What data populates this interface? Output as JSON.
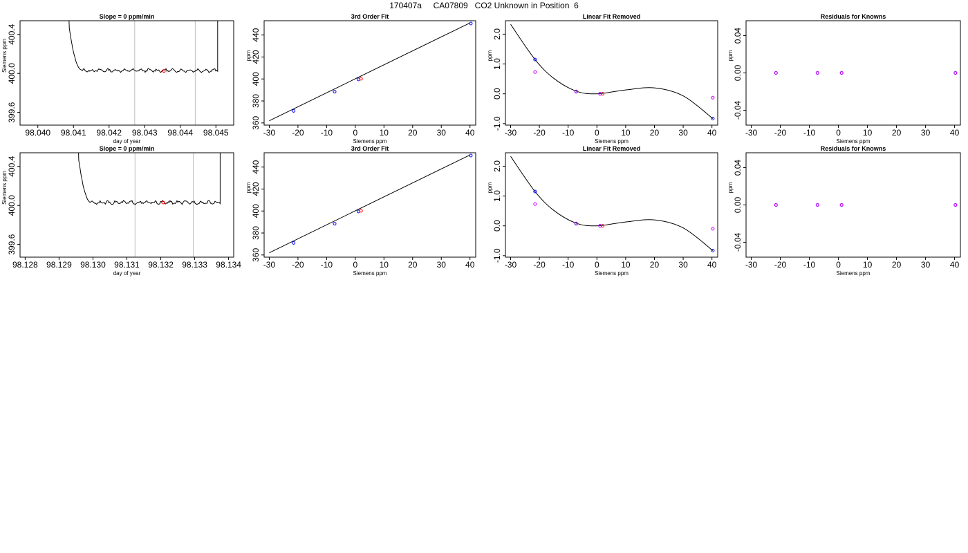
{
  "main_title": "170407a     CA07809   CO2 Unknown in Position  6",
  "chart_data": [
    {
      "id": "r1-trace",
      "type": "line",
      "title": "Slope =  0  ppm/min",
      "xlabel": "day of year",
      "ylabel": "Siemens ppm",
      "xlim": [
        98.0395,
        98.0455
      ],
      "ylim": [
        399.47,
        400.54
      ],
      "xticks": [
        98.04,
        98.041,
        98.042,
        98.043,
        98.044,
        98.045
      ],
      "xtick_labels": [
        "98.040",
        "98.041",
        "98.042",
        "98.043",
        "98.044",
        "98.045"
      ],
      "yticks": [
        399.6,
        400.0,
        400.4
      ],
      "ytick_labels": [
        "399.6",
        "400.0",
        "400.4"
      ],
      "vlines": [
        98.04272,
        98.04442
      ],
      "trace": {
        "start": 98.04085,
        "drop_end": 98.04123,
        "end": 98.04505,
        "level": 400.03
      },
      "marker": {
        "x": 98.04354,
        "y": 400.025,
        "color": "#ff0000"
      }
    },
    {
      "id": "r1-fit",
      "type": "scatter",
      "title": "3rd Order Fit",
      "xlabel": "Siemens ppm",
      "ylabel": "ppm",
      "xlim": [
        -31.8,
        42.0
      ],
      "ylim": [
        358.0,
        453.0
      ],
      "xticks": [
        -30,
        -20,
        -10,
        0,
        10,
        20,
        30,
        40
      ],
      "xtick_labels": [
        "-30",
        "-20",
        "-10",
        "0",
        "10",
        "20",
        "30",
        "40"
      ],
      "yticks": [
        360,
        380,
        400,
        420,
        440
      ],
      "ytick_labels": [
        "360",
        "380",
        "400",
        "420",
        "440"
      ],
      "fit_line": {
        "x_start": -30,
        "x_end": 40,
        "y_start": 362.0,
        "y_end": 451.0
      },
      "points": [
        {
          "x": -21.5,
          "y": 371.0,
          "color": "#0000ff"
        },
        {
          "x": -7.2,
          "y": 388.4,
          "color": "#0000ff"
        },
        {
          "x": 1.1,
          "y": 399.6,
          "color": "#0000ff"
        },
        {
          "x": 40.3,
          "y": 450.5,
          "color": "#0000ff"
        },
        {
          "x": 2.0,
          "y": 400.2,
          "color": "#ff0000"
        }
      ]
    },
    {
      "id": "r1-resid",
      "type": "scatter",
      "title": "Linear Fit Removed",
      "xlabel": "Siemens ppm",
      "ylabel": "ppm",
      "xlim": [
        -31.8,
        42.0
      ],
      "ylim": [
        -1.05,
        2.45
      ],
      "xticks": [
        -30,
        -20,
        -10,
        0,
        10,
        20,
        30,
        40
      ],
      "xtick_labels": [
        "-30",
        "-20",
        "-10",
        "0",
        "10",
        "20",
        "30",
        "40"
      ],
      "yticks": [
        -1.0,
        0.0,
        1.0,
        2.0
      ],
      "ytick_labels": [
        "-1.0",
        "0.0",
        "1.0",
        "2.0"
      ],
      "curve": [
        [
          -30,
          2.33
        ],
        [
          -21.5,
          1.15
        ],
        [
          -15,
          0.52
        ],
        [
          -7.2,
          0.09
        ],
        [
          0,
          0.0
        ],
        [
          10,
          0.13
        ],
        [
          20,
          0.2
        ],
        [
          30,
          -0.07
        ],
        [
          40.3,
          -0.83
        ]
      ],
      "points": [
        {
          "x": -21.5,
          "y": 1.15,
          "color": "#0000ff"
        },
        {
          "x": -7.2,
          "y": 0.07,
          "color": "#0000ff"
        },
        {
          "x": 1.1,
          "y": 0.0,
          "color": "#0000ff"
        },
        {
          "x": 40.3,
          "y": -0.83,
          "color": "#0000ff"
        },
        {
          "x": -21.5,
          "y": 0.73,
          "color": "#cc00ff"
        },
        {
          "x": -7.2,
          "y": 0.08,
          "color": "#cc00ff"
        },
        {
          "x": 1.1,
          "y": 0.0,
          "color": "#cc00ff"
        },
        {
          "x": 40.3,
          "y": -0.13,
          "color": "#cc00ff"
        },
        {
          "x": 2.0,
          "y": 0.0,
          "color": "#ff0000"
        }
      ]
    },
    {
      "id": "r1-known",
      "type": "scatter",
      "title": "Residuals for Knowns",
      "xlabel": "Siemens ppm",
      "ylabel": "ppm",
      "xlim": [
        -31.8,
        42.0
      ],
      "ylim": [
        -0.056,
        0.056
      ],
      "xticks": [
        -30,
        -20,
        -10,
        0,
        10,
        20,
        30,
        40
      ],
      "xtick_labels": [
        "-30",
        "-20",
        "-10",
        "0",
        "10",
        "20",
        "30",
        "40"
      ],
      "yticks": [
        -0.04,
        0.0,
        0.04
      ],
      "ytick_labels": [
        "-0.04",
        "0.00",
        "0.04"
      ],
      "points": [
        {
          "x": -21.5,
          "y": 0.0,
          "color": "#0000ff"
        },
        {
          "x": -7.2,
          "y": 0.0,
          "color": "#0000ff"
        },
        {
          "x": 1.1,
          "y": 0.0,
          "color": "#0000ff"
        },
        {
          "x": 40.3,
          "y": 0.0,
          "color": "#0000ff"
        },
        {
          "x": -21.5,
          "y": 0.0,
          "color": "#cc00ff"
        },
        {
          "x": -7.2,
          "y": 0.0,
          "color": "#cc00ff"
        },
        {
          "x": 1.1,
          "y": 0.0,
          "color": "#cc00ff"
        },
        {
          "x": 40.3,
          "y": 0.0,
          "color": "#cc00ff"
        }
      ]
    },
    {
      "id": "r2-trace",
      "type": "line",
      "title": "Slope =  0  ppm/min",
      "xlabel": "day of year",
      "ylabel": "Siemens ppm",
      "xlim": [
        98.12785,
        98.13415
      ],
      "ylim": [
        399.47,
        400.54
      ],
      "xticks": [
        98.128,
        98.129,
        98.13,
        98.131,
        98.132,
        98.133,
        98.134
      ],
      "xtick_labels": [
        "98.128",
        "98.129",
        "98.130",
        "98.131",
        "98.132",
        "98.133",
        "98.134"
      ],
      "yticks": [
        399.6,
        400.0,
        400.4
      ],
      "ytick_labels": [
        "399.6",
        "400.0",
        "400.4"
      ],
      "vlines": [
        98.13124,
        98.13296
      ],
      "trace": {
        "start": 98.12955,
        "drop_end": 98.12993,
        "end": 98.13375,
        "level": 400.03
      },
      "marker": {
        "x": 98.13207,
        "y": 400.03,
        "color": "#ff0000"
      }
    },
    {
      "id": "r2-fit",
      "type": "scatter",
      "title": "3rd Order Fit",
      "xlabel": "Siemens ppm",
      "ylabel": "ppm",
      "xlim": [
        -31.8,
        42.0
      ],
      "ylim": [
        358.0,
        453.0
      ],
      "xticks": [
        -30,
        -20,
        -10,
        0,
        10,
        20,
        30,
        40
      ],
      "xtick_labels": [
        "-30",
        "-20",
        "-10",
        "0",
        "10",
        "20",
        "30",
        "40"
      ],
      "yticks": [
        360,
        380,
        400,
        420,
        440
      ],
      "ytick_labels": [
        "360",
        "380",
        "400",
        "420",
        "440"
      ],
      "fit_line": {
        "x_start": -30,
        "x_end": 40,
        "y_start": 362.0,
        "y_end": 451.0
      },
      "points": [
        {
          "x": -21.5,
          "y": 371.0,
          "color": "#0000ff"
        },
        {
          "x": -7.2,
          "y": 388.4,
          "color": "#0000ff"
        },
        {
          "x": 1.1,
          "y": 399.6,
          "color": "#0000ff"
        },
        {
          "x": 40.3,
          "y": 450.5,
          "color": "#0000ff"
        },
        {
          "x": 2.0,
          "y": 400.2,
          "color": "#ff0000"
        }
      ]
    },
    {
      "id": "r2-resid",
      "type": "scatter",
      "title": "Linear Fit Removed",
      "xlabel": "Siemens ppm",
      "ylabel": "ppm",
      "xlim": [
        -31.8,
        42.0
      ],
      "ylim": [
        -1.05,
        2.45
      ],
      "xticks": [
        -30,
        -20,
        -10,
        0,
        10,
        20,
        30,
        40
      ],
      "xtick_labels": [
        "-30",
        "-20",
        "-10",
        "0",
        "10",
        "20",
        "30",
        "40"
      ],
      "yticks": [
        -1.0,
        0.0,
        1.0,
        2.0
      ],
      "ytick_labels": [
        "-1.0",
        "0.0",
        "1.0",
        "2.0"
      ],
      "curve": [
        [
          -30,
          2.33
        ],
        [
          -21.5,
          1.15
        ],
        [
          -15,
          0.52
        ],
        [
          -7.2,
          0.09
        ],
        [
          0,
          0.0
        ],
        [
          10,
          0.13
        ],
        [
          20,
          0.2
        ],
        [
          30,
          -0.07
        ],
        [
          40.3,
          -0.83
        ]
      ],
      "points": [
        {
          "x": -21.5,
          "y": 1.15,
          "color": "#0000ff"
        },
        {
          "x": -7.2,
          "y": 0.07,
          "color": "#0000ff"
        },
        {
          "x": 1.1,
          "y": 0.0,
          "color": "#0000ff"
        },
        {
          "x": 40.3,
          "y": -0.83,
          "color": "#0000ff"
        },
        {
          "x": -21.5,
          "y": 0.73,
          "color": "#cc00ff"
        },
        {
          "x": -7.2,
          "y": 0.08,
          "color": "#cc00ff"
        },
        {
          "x": 1.1,
          "y": 0.0,
          "color": "#cc00ff"
        },
        {
          "x": 40.3,
          "y": -0.1,
          "color": "#cc00ff"
        },
        {
          "x": 2.0,
          "y": 0.0,
          "color": "#ff0000"
        }
      ]
    },
    {
      "id": "r2-known",
      "type": "scatter",
      "title": "Residuals for Knowns",
      "xlabel": "Siemens ppm",
      "ylabel": "ppm",
      "xlim": [
        -31.8,
        42.0
      ],
      "ylim": [
        -0.056,
        0.056
      ],
      "xticks": [
        -30,
        -20,
        -10,
        0,
        10,
        20,
        30,
        40
      ],
      "xtick_labels": [
        "-30",
        "-20",
        "-10",
        "0",
        "10",
        "20",
        "30",
        "40"
      ],
      "yticks": [
        -0.04,
        0.0,
        0.04
      ],
      "ytick_labels": [
        "-0.04",
        "0.00",
        "0.04"
      ],
      "points": [
        {
          "x": -21.5,
          "y": 0.0,
          "color": "#0000ff"
        },
        {
          "x": -7.2,
          "y": 0.0,
          "color": "#0000ff"
        },
        {
          "x": 1.1,
          "y": 0.0,
          "color": "#0000ff"
        },
        {
          "x": 40.3,
          "y": 0.0,
          "color": "#0000ff"
        },
        {
          "x": -21.5,
          "y": 0.0,
          "color": "#cc00ff"
        },
        {
          "x": -7.2,
          "y": 0.0,
          "color": "#cc00ff"
        },
        {
          "x": 1.1,
          "y": 0.0,
          "color": "#cc00ff"
        },
        {
          "x": 40.3,
          "y": 0.0,
          "color": "#cc00ff"
        }
      ]
    }
  ]
}
